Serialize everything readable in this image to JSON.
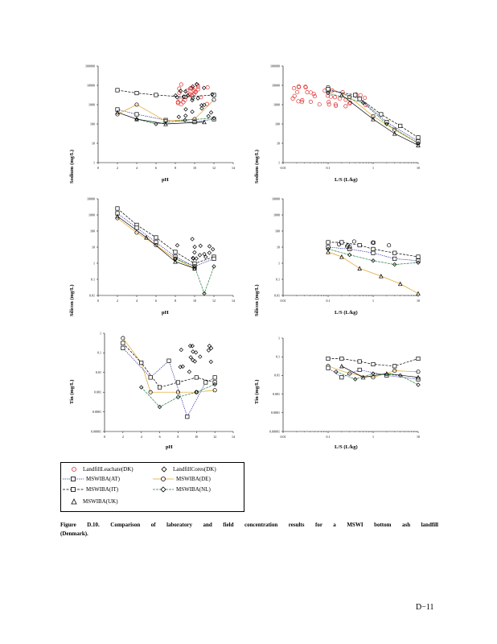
{
  "panels": [
    {
      "id": "p1",
      "ylabel": "Sodium   (mg/L)",
      "xlabel": "pH",
      "yticks": [
        "100000",
        "10000",
        "1000",
        "100",
        "10",
        "1"
      ],
      "xticks": [
        "0",
        "2",
        "4",
        "6",
        "8",
        "10",
        "12",
        "14"
      ]
    },
    {
      "id": "p2",
      "ylabel": "Sodium   (mg/L)",
      "xlabel": "L/S     (L/kg)",
      "yticks": [
        "100000",
        "10000",
        "1000",
        "100",
        "10",
        "1"
      ],
      "xticks": [
        "0.01",
        "0.1",
        "1",
        "10"
      ]
    },
    {
      "id": "p3",
      "ylabel": "Silicon   (mg/L)",
      "xlabel": "pH",
      "yticks": [
        "10000",
        "1000",
        "100",
        "10",
        "1",
        "0.1",
        "0.01"
      ],
      "xticks": [
        "0",
        "2",
        "4",
        "6",
        "8",
        "10",
        "12",
        "14"
      ]
    },
    {
      "id": "p4",
      "ylabel": "Silicon   (mg/L)",
      "xlabel": "L/S     (L/kg)",
      "yticks": [
        "10000",
        "1000",
        "100",
        "10",
        "1",
        "0.1",
        "0.01"
      ],
      "xticks": [
        "0.01",
        "0.1",
        "1",
        "10"
      ]
    },
    {
      "id": "p5",
      "ylabel": "Tin   (mg/L)",
      "xlabel": "pH",
      "yticks": [
        "1",
        "0.1",
        "0.01",
        "0.001",
        "0.0001",
        "0.00001"
      ],
      "xticks": [
        "0",
        "2",
        "4",
        "6",
        "8",
        "10",
        "12",
        "14"
      ]
    },
    {
      "id": "p6",
      "ylabel": "Tin   (mg/L)",
      "xlabel": "L/S     (L/kg)",
      "yticks": [
        "1",
        "0.1",
        "0.01",
        "0.001",
        "0.0001",
        "0.00001"
      ],
      "xticks": [
        "0.01",
        "0.1",
        "1",
        "10"
      ]
    }
  ],
  "legend": [
    {
      "label": "LandfillLeachate(DK)",
      "color": "#e03030",
      "marker": "circle",
      "line": false
    },
    {
      "label": "LandfillCores(DK)",
      "color": "#000000",
      "marker": "diamond",
      "line": false
    },
    {
      "label": "MSWIBA(AT)",
      "color": "#3030a0",
      "marker": "square",
      "line": true
    },
    {
      "label": "MSWIBA(DE)",
      "color": "#e0a020",
      "marker": "circle",
      "line": true
    },
    {
      "label": "MSWIBA(IT)",
      "color": "#000000",
      "marker": "square",
      "line": true
    },
    {
      "label": "MSWIBA(NL)",
      "color": "#208040",
      "marker": "diamond",
      "line": true
    },
    {
      "label": "MSWIBA(UK)",
      "color": "#000000",
      "marker": "triangle",
      "line": false
    }
  ],
  "caption_line1": "Figure    D.10.    Comparison    of laboratory    and field concentration    results    for    a MSWI    bottom    ash landfill",
  "caption_line2": "(Denmark).",
  "page_number": "D−11"
}
